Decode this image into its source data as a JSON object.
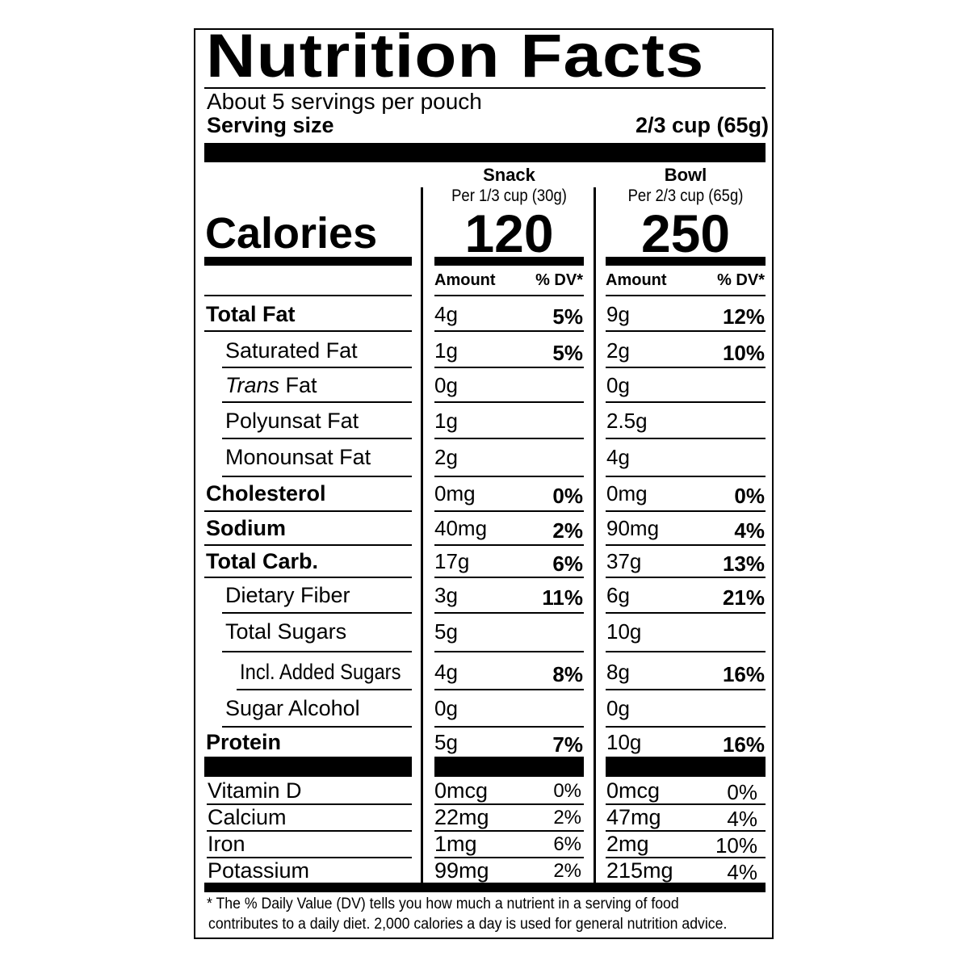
{
  "title": "Nutrition Facts",
  "servings_per_container": "About 5 servings per pouch",
  "serving_size_label": "Serving size",
  "serving_size_value": "2/3 cup (65g)",
  "calories_label": "Calories",
  "columns": [
    {
      "name": "Snack",
      "portion": "Per 1/3 cup (30g)",
      "calories": "120",
      "amount_header": "Amount",
      "dv_header": "% DV*"
    },
    {
      "name": "Bowl",
      "portion": "Per 2/3 cup (65g)",
      "calories": "250",
      "amount_header": "Amount",
      "dv_header": "% DV*"
    }
  ],
  "nutrients": [
    {
      "label": "Total Fat",
      "style": "bold",
      "snack": {
        "amount": "4g",
        "dv": "5%"
      },
      "bowl": {
        "amount": "9g",
        "dv": "12%"
      }
    },
    {
      "label": "Saturated Fat",
      "style": "indent",
      "snack": {
        "amount": "1g",
        "dv": "5%"
      },
      "bowl": {
        "amount": "2g",
        "dv": "10%"
      }
    },
    {
      "label_italic": "Trans",
      "label": " Fat",
      "style": "indent",
      "snack": {
        "amount": "0g",
        "dv": ""
      },
      "bowl": {
        "amount": "0g",
        "dv": ""
      }
    },
    {
      "label": "Polyunsat Fat",
      "style": "indent",
      "snack": {
        "amount": "1g",
        "dv": ""
      },
      "bowl": {
        "amount": "2.5g",
        "dv": ""
      }
    },
    {
      "label": "Monounsat Fat",
      "style": "indent",
      "snack": {
        "amount": "2g",
        "dv": ""
      },
      "bowl": {
        "amount": "4g",
        "dv": ""
      }
    },
    {
      "label": "Cholesterol",
      "style": "bold",
      "snack": {
        "amount": "0mg",
        "dv": "0%"
      },
      "bowl": {
        "amount": "0mg",
        "dv": "0%"
      }
    },
    {
      "label": "Sodium",
      "style": "bold",
      "snack": {
        "amount": "40mg",
        "dv": "2%"
      },
      "bowl": {
        "amount": "90mg",
        "dv": "4%"
      }
    },
    {
      "label": "Total Carb.",
      "style": "bold",
      "snack": {
        "amount": "17g",
        "dv": "6%"
      },
      "bowl": {
        "amount": "37g",
        "dv": "13%"
      }
    },
    {
      "label": "Dietary Fiber",
      "style": "indent",
      "snack": {
        "amount": "3g",
        "dv": "11%"
      },
      "bowl": {
        "amount": "6g",
        "dv": "21%"
      }
    },
    {
      "label": "Total Sugars",
      "style": "indent",
      "snack": {
        "amount": "5g",
        "dv": ""
      },
      "bowl": {
        "amount": "10g",
        "dv": ""
      }
    },
    {
      "label": "Incl. Added Sugars",
      "style": "indent2",
      "snack": {
        "amount": "4g",
        "dv": "8%"
      },
      "bowl": {
        "amount": "8g",
        "dv": "16%"
      }
    },
    {
      "label": "Sugar Alcohol",
      "style": "indent",
      "snack": {
        "amount": "0g",
        "dv": ""
      },
      "bowl": {
        "amount": "0g",
        "dv": ""
      }
    },
    {
      "label": "Protein",
      "style": "bold",
      "snack": {
        "amount": "5g",
        "dv": "7%"
      },
      "bowl": {
        "amount": "10g",
        "dv": "16%"
      }
    }
  ],
  "vitamins": [
    {
      "label": "Vitamin D",
      "snack": {
        "amount": "0mcg",
        "dv": "0%"
      },
      "bowl": {
        "amount": "0mcg",
        "dv": "0%"
      }
    },
    {
      "label": "Calcium",
      "snack": {
        "amount": "22mg",
        "dv": "2%"
      },
      "bowl": {
        "amount": "47mg",
        "dv": "4%"
      }
    },
    {
      "label": "Iron",
      "snack": {
        "amount": "1mg",
        "dv": "6%"
      },
      "bowl": {
        "amount": "2mg",
        "dv": "10%"
      }
    },
    {
      "label": "Potassium",
      "snack": {
        "amount": "99mg",
        "dv": "2%"
      },
      "bowl": {
        "amount": "215mg",
        "dv": "4%"
      }
    }
  ],
  "footnote_line1": "* The % Daily Value (DV) tells you how much a nutrient in a serving of food",
  "footnote_line2": "contributes to a daily diet. 2,000 calories a day is used for general nutrition advice."
}
